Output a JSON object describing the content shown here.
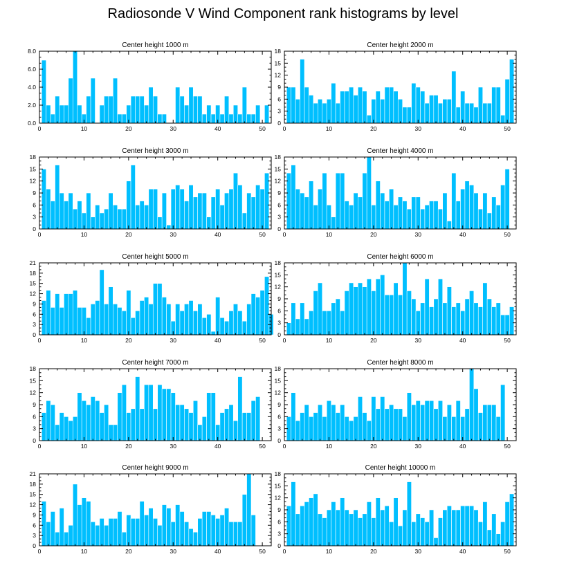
{
  "figure": {
    "title": "Radiosonde V Wind Component rank histograms by level"
  },
  "chart_data": [
    {
      "type": "bar",
      "title": "Center height 1000 m",
      "xlim": [
        0,
        52
      ],
      "ylim": [
        0,
        8
      ],
      "xticks": [
        0,
        10,
        20,
        30,
        40,
        50
      ],
      "yticks": [
        0,
        2,
        4,
        6,
        8
      ],
      "ytick_labels": [
        "0.0",
        "2.0",
        "4.0",
        "6.0",
        "8.0"
      ],
      "values": [
        7,
        2,
        1,
        3,
        2,
        2,
        5,
        8,
        2,
        1,
        3,
        5,
        0,
        2,
        3,
        3,
        5,
        1,
        1,
        2,
        3,
        3,
        3,
        2,
        4,
        3,
        1,
        1,
        0,
        0,
        4,
        3,
        2,
        4,
        3,
        3,
        1,
        2,
        1,
        2,
        1,
        3,
        1,
        2,
        1,
        4,
        1,
        1,
        2,
        0,
        2,
        0
      ]
    },
    {
      "type": "bar",
      "title": "Center height 2000 m",
      "xlim": [
        0,
        52
      ],
      "ylim": [
        0,
        18
      ],
      "xticks": [
        0,
        10,
        20,
        30,
        40,
        50
      ],
      "yticks": [
        0,
        3,
        6,
        9,
        12,
        15,
        18
      ],
      "ytick_labels": [
        "0",
        "3",
        "6",
        "9",
        "12",
        "15",
        "18"
      ],
      "values": [
        9,
        9,
        6,
        16,
        9,
        7,
        5,
        6,
        5,
        6,
        10,
        5,
        8,
        8,
        9,
        7,
        9,
        8,
        2,
        6,
        8,
        6,
        9,
        9,
        8,
        6,
        4,
        4,
        10,
        9,
        8,
        5,
        7,
        7,
        5,
        6,
        6,
        13,
        4,
        8,
        5,
        5,
        4,
        9,
        5,
        5,
        9,
        9,
        2,
        11,
        16
      ]
    },
    {
      "type": "bar",
      "title": "Center height 3000 m",
      "xlim": [
        0,
        52
      ],
      "ylim": [
        0,
        18
      ],
      "xticks": [
        0,
        10,
        20,
        30,
        40,
        50
      ],
      "yticks": [
        0,
        3,
        6,
        9,
        12,
        15,
        18
      ],
      "ytick_labels": [
        "0",
        "3",
        "6",
        "9",
        "12",
        "15",
        "18"
      ],
      "values": [
        15,
        10,
        7,
        16,
        9,
        7,
        9,
        5,
        7,
        4,
        9,
        3,
        6,
        4,
        5,
        9,
        6,
        5,
        5,
        12,
        16,
        6,
        7,
        6,
        10,
        10,
        3,
        9,
        1,
        10,
        11,
        10,
        7,
        11,
        8,
        9,
        9,
        3,
        8,
        10,
        6,
        9,
        10,
        14,
        11,
        4,
        9,
        8,
        11,
        10,
        14
      ]
    },
    {
      "type": "bar",
      "title": "Center height 4000 m",
      "xlim": [
        0,
        52
      ],
      "ylim": [
        0,
        18
      ],
      "xticks": [
        0,
        10,
        20,
        30,
        40,
        50
      ],
      "yticks": [
        0,
        3,
        6,
        9,
        12,
        15,
        18
      ],
      "ytick_labels": [
        "0",
        "3",
        "6",
        "9",
        "12",
        "15",
        "18"
      ],
      "values": [
        14,
        16,
        10,
        9,
        8,
        12,
        6,
        10,
        14,
        6,
        3,
        14,
        14,
        7,
        6,
        9,
        8,
        14,
        18,
        6,
        12,
        9,
        7,
        10,
        6,
        8,
        7,
        5,
        8,
        8,
        5,
        6,
        7,
        7,
        5,
        9,
        2,
        14,
        7,
        10,
        12,
        11,
        9,
        5,
        9,
        4,
        8,
        6,
        11,
        15
      ]
    },
    {
      "type": "bar",
      "title": "Center height 5000 m",
      "xlim": [
        0,
        52
      ],
      "ylim": [
        0,
        21
      ],
      "xticks": [
        0,
        10,
        20,
        30,
        40,
        50
      ],
      "yticks": [
        0,
        3,
        6,
        9,
        12,
        15,
        18,
        21
      ],
      "ytick_labels": [
        "0",
        "3",
        "6",
        "9",
        "12",
        "15",
        "18",
        "21"
      ],
      "values": [
        10,
        13,
        8,
        12,
        8,
        12,
        12,
        13,
        8,
        8,
        5,
        9,
        10,
        19,
        9,
        14,
        9,
        8,
        7,
        13,
        5,
        7,
        10,
        11,
        9,
        15,
        15,
        11,
        9,
        4,
        9,
        7,
        9,
        10,
        7,
        9,
        5,
        6,
        1,
        11,
        5,
        4,
        7,
        9,
        7,
        4,
        9,
        12,
        11,
        13,
        17,
        6
      ]
    },
    {
      "type": "bar",
      "title": "Center height 6000 m",
      "xlim": [
        0,
        52
      ],
      "ylim": [
        0,
        18
      ],
      "xticks": [
        0,
        10,
        20,
        30,
        40,
        50
      ],
      "yticks": [
        0,
        3,
        6,
        9,
        12,
        15,
        18
      ],
      "ytick_labels": [
        "0",
        "3",
        "6",
        "9",
        "12",
        "15",
        "18"
      ],
      "values": [
        3,
        8,
        4,
        8,
        4,
        6,
        11,
        13,
        6,
        6,
        8,
        9,
        6,
        11,
        13,
        12,
        13,
        12,
        14,
        11,
        14,
        15,
        10,
        10,
        13,
        10,
        18,
        11,
        9,
        6,
        8,
        14,
        7,
        9,
        14,
        8,
        12,
        7,
        8,
        6,
        9,
        11,
        8,
        7,
        13,
        9,
        7,
        8,
        5,
        5,
        7
      ]
    },
    {
      "type": "bar",
      "title": "Center height 7000 m",
      "xlim": [
        0,
        52
      ],
      "ylim": [
        0,
        18
      ],
      "xticks": [
        0,
        10,
        20,
        30,
        40,
        50
      ],
      "yticks": [
        0,
        3,
        6,
        9,
        12,
        15,
        18
      ],
      "ytick_labels": [
        "0",
        "3",
        "6",
        "9",
        "12",
        "15",
        "18"
      ],
      "values": [
        7,
        10,
        9,
        4,
        7,
        6,
        5,
        6,
        12,
        10,
        9,
        11,
        10,
        7,
        9,
        4,
        4,
        12,
        14,
        7,
        8,
        16,
        8,
        14,
        14,
        8,
        14,
        13,
        13,
        12,
        9,
        9,
        8,
        7,
        10,
        4,
        6,
        12,
        12,
        4,
        7,
        8,
        9,
        5,
        16,
        7,
        7,
        10,
        11
      ]
    },
    {
      "type": "bar",
      "title": "Center height 8000 m",
      "xlim": [
        0,
        52
      ],
      "ylim": [
        0,
        18
      ],
      "xticks": [
        0,
        10,
        20,
        30,
        40,
        50
      ],
      "yticks": [
        0,
        3,
        6,
        9,
        12,
        15,
        18
      ],
      "ytick_labels": [
        "0",
        "3",
        "6",
        "9",
        "12",
        "15",
        "18"
      ],
      "values": [
        6,
        12,
        5,
        7,
        9,
        6,
        7,
        9,
        6,
        10,
        9,
        7,
        9,
        6,
        5,
        6,
        11,
        7,
        5,
        11,
        8,
        11,
        8,
        9,
        8,
        8,
        6,
        12,
        9,
        10,
        9,
        10,
        10,
        8,
        10,
        6,
        9,
        6,
        10,
        6,
        8,
        18,
        13,
        7,
        9,
        9,
        9,
        6,
        14
      ]
    },
    {
      "type": "bar",
      "title": "Center height 9000 m",
      "xlim": [
        0,
        52
      ],
      "ylim": [
        0,
        21
      ],
      "xticks": [
        0,
        10,
        20,
        30,
        40,
        50
      ],
      "yticks": [
        0,
        3,
        6,
        9,
        12,
        15,
        18,
        21
      ],
      "ytick_labels": [
        "0",
        "3",
        "6",
        "9",
        "12",
        "15",
        "18",
        "21"
      ],
      "values": [
        13,
        7,
        10,
        4,
        11,
        4,
        6,
        18,
        12,
        14,
        13,
        7,
        6,
        8,
        6,
        8,
        8,
        10,
        4,
        9,
        8,
        8,
        13,
        9,
        11,
        8,
        6,
        12,
        11,
        7,
        12,
        10,
        7,
        5,
        4,
        8,
        10,
        10,
        9,
        8,
        9,
        11,
        7,
        7,
        7,
        15,
        21,
        9
      ]
    },
    {
      "type": "bar",
      "title": "Center height 10000 m",
      "xlim": [
        0,
        52
      ],
      "ylim": [
        0,
        18
      ],
      "xticks": [
        0,
        10,
        20,
        30,
        40,
        50
      ],
      "yticks": [
        0,
        3,
        6,
        9,
        12,
        15,
        18
      ],
      "ytick_labels": [
        "0",
        "3",
        "6",
        "9",
        "12",
        "15",
        "18"
      ],
      "values": [
        10,
        16,
        8,
        10,
        11,
        12,
        13,
        8,
        7,
        9,
        11,
        9,
        12,
        9,
        8,
        9,
        7,
        8,
        11,
        7,
        12,
        9,
        10,
        6,
        12,
        5,
        9,
        16,
        6,
        8,
        7,
        6,
        9,
        2,
        7,
        9,
        10,
        9,
        9,
        10,
        10,
        10,
        9,
        6,
        11,
        4,
        8,
        3,
        6,
        11,
        13
      ]
    }
  ]
}
